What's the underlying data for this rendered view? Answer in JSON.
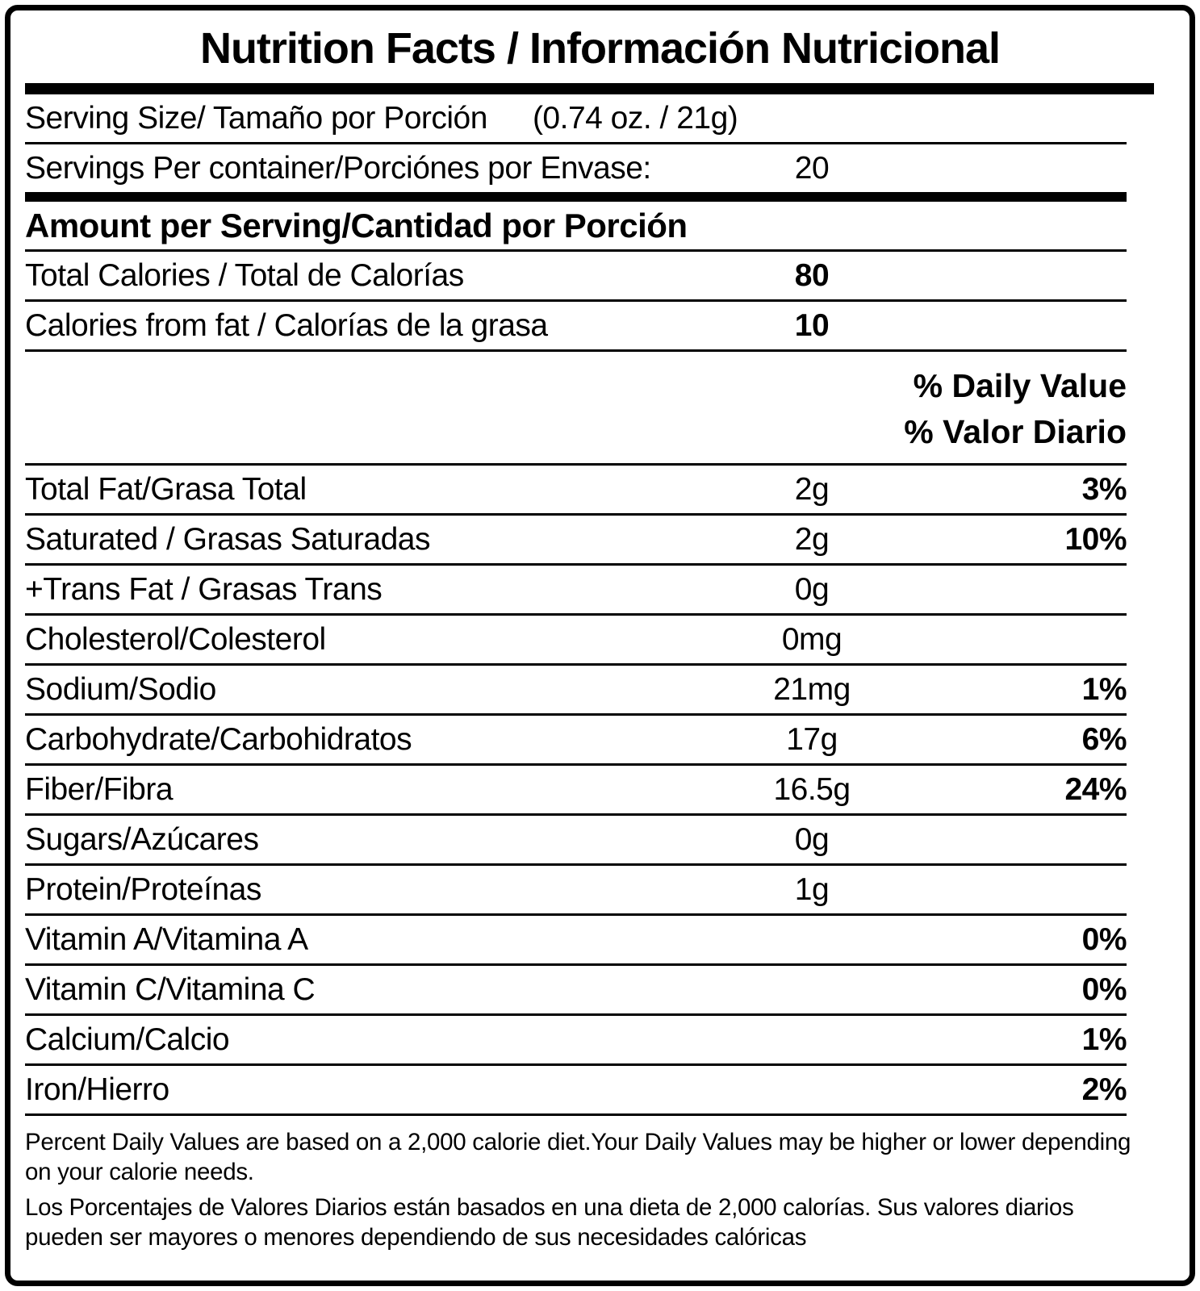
{
  "title": "Nutrition Facts / Información Nutricional",
  "serving": {
    "label": "Serving Size/ Tamaño por Porción",
    "value": "(0.74 oz. / 21g)"
  },
  "servings_per_container": {
    "label": "Servings Per container/Porciónes por Envase:",
    "value": "20"
  },
  "amount_header": "Amount per Serving/Cantidad por Porción",
  "calories": [
    {
      "label": "Total Calories / Total de Calorías",
      "value": "80"
    },
    {
      "label": "Calories from fat / Calorías de la grasa",
      "value": "10"
    }
  ],
  "dv_headers": {
    "en": "% Daily Value",
    "es": "% Valor Diario"
  },
  "nutrients": [
    {
      "label": "Total Fat/Grasa Total",
      "amount": "2g",
      "dv": "3%"
    },
    {
      "label": "Saturated / Grasas Saturadas",
      "amount": "2g",
      "dv": "10%"
    },
    {
      "label": "+Trans Fat / Grasas Trans",
      "amount": "0g",
      "dv": ""
    },
    {
      "label": "Cholesterol/Colesterol",
      "amount": "0mg",
      "dv": ""
    },
    {
      "label": "Sodium/Sodio",
      "amount": "21mg",
      "dv": "1%"
    },
    {
      "label": "Carbohydrate/Carbohidratos",
      "amount": "17g",
      "dv": "6%"
    },
    {
      "label": "Fiber/Fibra",
      "amount": "16.5g",
      "dv": "24%"
    },
    {
      "label": "Sugars/Azúcares",
      "amount": "0g",
      "dv": ""
    },
    {
      "label": "Protein/Proteínas",
      "amount": "1g",
      "dv": ""
    },
    {
      "label": "Vitamin A/Vitamina A",
      "amount": "",
      "dv": "0%"
    },
    {
      "label": "Vitamin C/Vitamina C",
      "amount": "",
      "dv": "0%"
    },
    {
      "label": "Calcium/Calcio",
      "amount": "",
      "dv": "1%"
    },
    {
      "label": "Iron/Hierro",
      "amount": "",
      "dv": "2%"
    }
  ],
  "footnotes": {
    "en": "Percent Daily Values are based on a 2,000 calorie diet.Your Daily Values may be higher or lower depending on your calorie needs.",
    "es": "Los Porcentajes de Valores Diarios están basados en una dieta de 2,000 calorías. Sus valores diarios pueden ser mayores o menores dependiendo de sus necesidades calóricas"
  }
}
